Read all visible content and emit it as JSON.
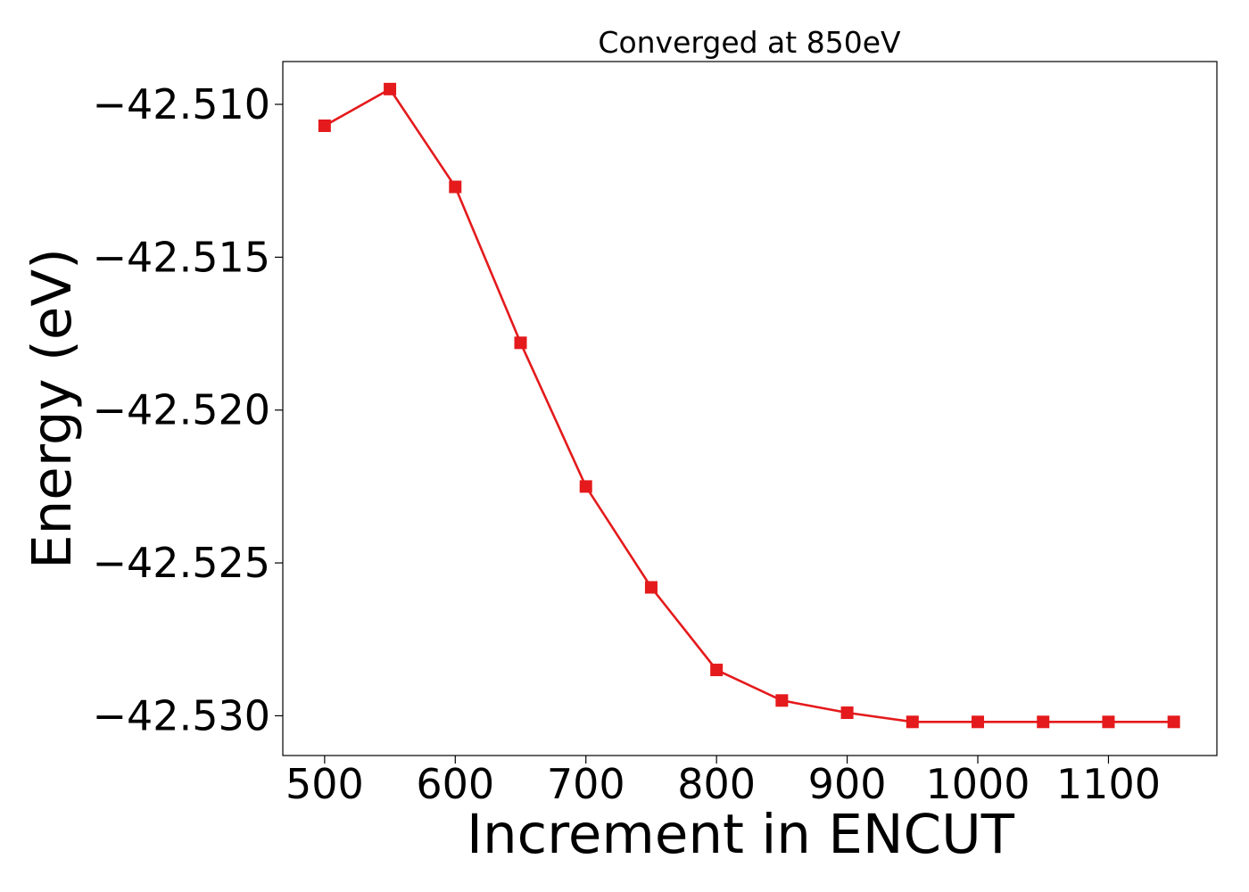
{
  "chart_data": {
    "type": "line",
    "title": "Converged at 850eV",
    "xlabel": "Increment in ENCUT",
    "ylabel": "Energy (eV)",
    "x": [
      500,
      550,
      600,
      650,
      700,
      750,
      800,
      850,
      900,
      950,
      1000,
      1050,
      1100,
      1150
    ],
    "xlim": [
      468,
      1183
    ],
    "ylim": [
      -42.5313,
      -42.5086
    ],
    "x_ticks": [
      500,
      600,
      700,
      800,
      900,
      1000,
      1100
    ],
    "x_tick_labels": [
      "500",
      "600",
      "700",
      "800",
      "900",
      "1000",
      "1100"
    ],
    "y_ticks": [
      -42.51,
      -42.515,
      -42.52,
      -42.525,
      -42.53
    ],
    "y_tick_labels": [
      "−42.510",
      "−42.515",
      "−42.520",
      "−42.525",
      "−42.530"
    ],
    "grid": false,
    "series": [
      {
        "marker": "square",
        "color": "#e41a1c",
        "values": [
          -42.5107,
          -42.5095,
          -42.5127,
          -42.5178,
          -42.5225,
          -42.5258,
          -42.5285,
          -42.5295,
          -42.5299,
          -42.5302,
          -42.5302,
          -42.5302,
          -42.5302,
          -42.5302
        ]
      }
    ]
  }
}
